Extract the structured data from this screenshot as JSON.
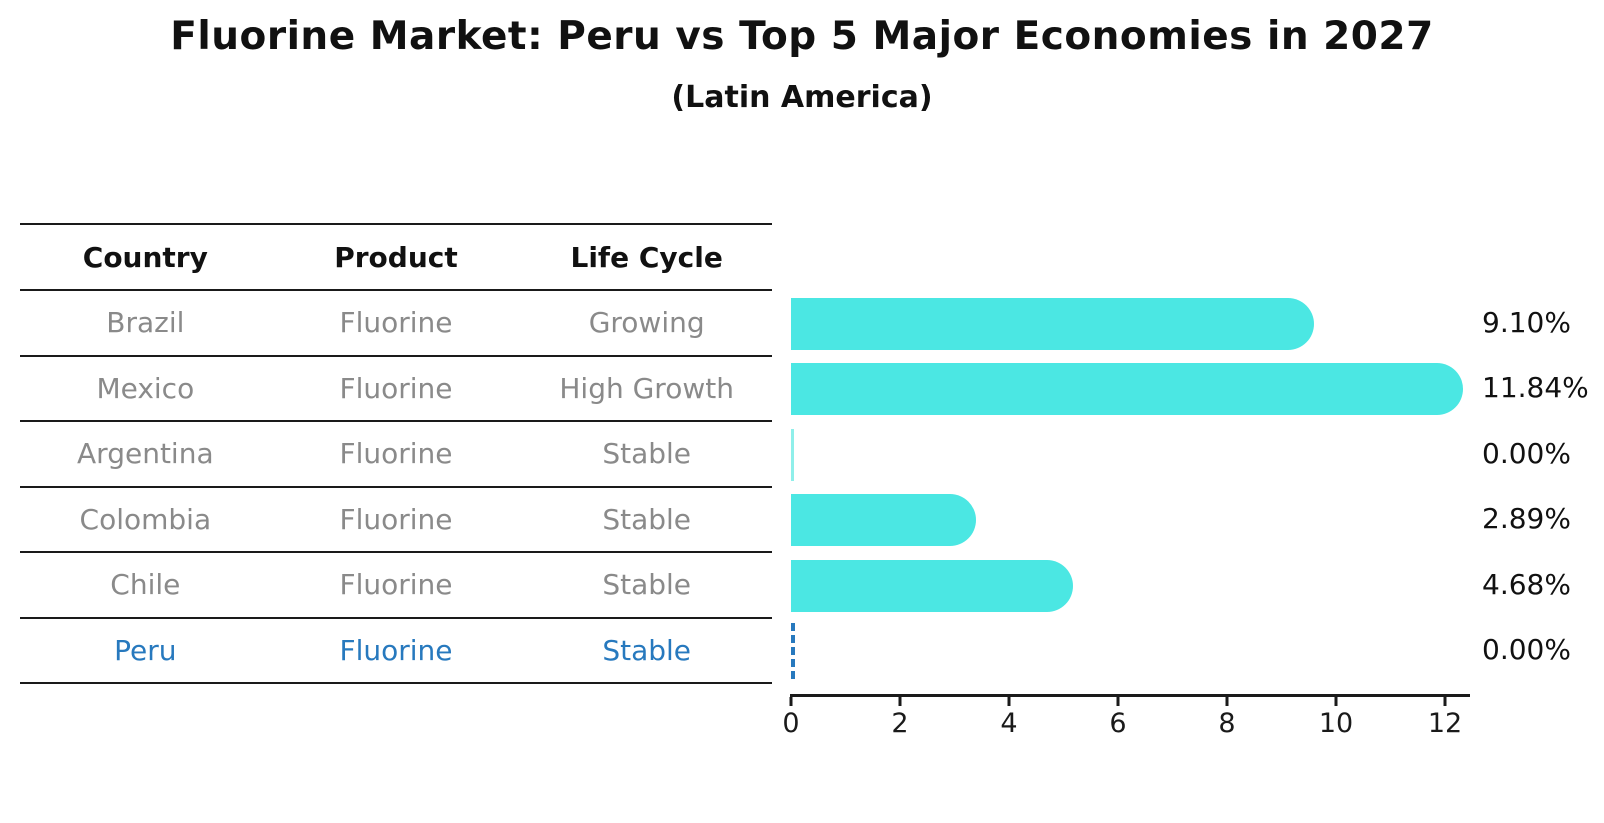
{
  "title": "Fluorine Market: Peru vs Top 5 Major Economies in 2027",
  "subtitle": "(Latin America)",
  "table": {
    "headers": [
      "Country",
      "Product",
      "Life Cycle"
    ],
    "rows": [
      {
        "country": "Brazil",
        "product": "Fluorine",
        "life_cycle": "Growing",
        "value": 9.1,
        "value_label": "9.10%",
        "highlight": false
      },
      {
        "country": "Mexico",
        "product": "Fluorine",
        "life_cycle": "High Growth",
        "value": 11.84,
        "value_label": "11.84%",
        "highlight": false
      },
      {
        "country": "Argentina",
        "product": "Fluorine",
        "life_cycle": "Stable",
        "value": 0.0,
        "value_label": "0.00%",
        "highlight": false
      },
      {
        "country": "Colombia",
        "product": "Fluorine",
        "life_cycle": "Stable",
        "value": 2.89,
        "value_label": "2.89%",
        "highlight": false
      },
      {
        "country": "Chile",
        "product": "Fluorine",
        "life_cycle": "Stable",
        "value": 4.68,
        "value_label": "4.68%",
        "highlight": false
      },
      {
        "country": "Peru",
        "product": "Fluorine",
        "life_cycle": "Stable",
        "value": 0.0,
        "value_label": "0.00%",
        "highlight": true
      }
    ]
  },
  "axis": {
    "tick_labels": [
      "0",
      "2",
      "4",
      "6",
      "8",
      "10",
      "12"
    ]
  },
  "colors": {
    "bar": "#4BE7E3",
    "highlight": "#2779BE",
    "table_text_muted": "#8a8a8a",
    "text": "#111111"
  },
  "chart_data": {
    "type": "bar",
    "orientation": "horizontal",
    "title": "Fluorine Market: Peru vs Top 5 Major Economies in 2027",
    "subtitle": "(Latin America)",
    "categories": [
      "Brazil",
      "Mexico",
      "Argentina",
      "Colombia",
      "Chile",
      "Peru"
    ],
    "values": [
      9.1,
      11.84,
      0.0,
      2.89,
      4.68,
      0.0
    ],
    "data_labels": [
      "9.10%",
      "11.84%",
      "0.00%",
      "2.89%",
      "4.68%",
      "0.00%"
    ],
    "xlabel": "",
    "ylabel": "",
    "xlim": [
      0,
      12.5
    ],
    "xticks": [
      0,
      2,
      4,
      6,
      8,
      10,
      12
    ],
    "grid": false,
    "legend": false,
    "bar_color": "#4BE7E3",
    "highlight_category": "Peru",
    "highlight_marker": "dashed zero line",
    "companion_table_headers": [
      "Country",
      "Product",
      "Life Cycle"
    ]
  }
}
